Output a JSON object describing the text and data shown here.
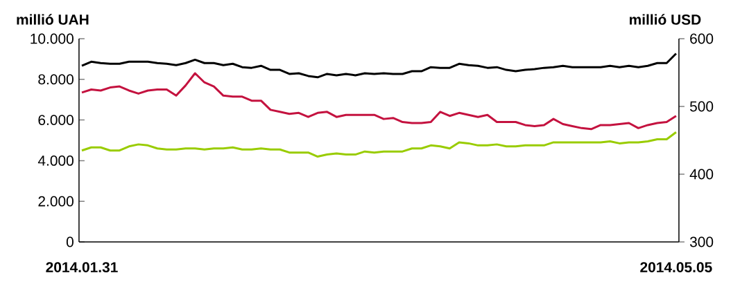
{
  "chart_data": {
    "type": "line",
    "ylabel": "millió UAH",
    "y2label": "millió USD",
    "categories": [
      "2014.01.31",
      null,
      null,
      null,
      null,
      null,
      null,
      null,
      null,
      null,
      null,
      null,
      null,
      null,
      null,
      null,
      null,
      null,
      null,
      null,
      null,
      null,
      null,
      null,
      null,
      null,
      null,
      null,
      null,
      null,
      null,
      null,
      null,
      null,
      null,
      null,
      null,
      null,
      null,
      null,
      null,
      null,
      null,
      null,
      null,
      null,
      null,
      null,
      null,
      null,
      null,
      null,
      null,
      null,
      null,
      null,
      null,
      null,
      null,
      null,
      null,
      null,
      null,
      "2014.05.05"
    ],
    "series": [
      {
        "color": "#000000",
        "axis": "y2",
        "values": [
          560,
          566,
          564,
          563,
          563,
          566,
          566,
          566,
          564,
          563,
          561,
          564,
          569,
          564,
          564,
          561,
          563,
          558,
          557,
          560,
          554,
          554,
          548,
          549,
          545,
          543,
          548,
          546,
          548,
          546,
          549,
          548,
          549,
          548,
          548,
          552,
          552,
          558,
          557,
          557,
          563,
          561,
          560,
          557,
          558,
          554,
          552,
          554,
          555,
          557,
          558,
          560,
          558,
          558,
          558,
          558,
          560,
          558,
          560,
          558,
          560,
          564,
          564,
          578
        ]
      },
      {
        "color": "#c4123f",
        "values": [
          7350,
          7500,
          7450,
          7600,
          7650,
          7450,
          7300,
          7450,
          7500,
          7500,
          7200,
          7700,
          8300,
          7850,
          7650,
          7200,
          7150,
          7150,
          6950,
          6950,
          6500,
          6400,
          6300,
          6350,
          6150,
          6350,
          6400,
          6150,
          6250,
          6250,
          6250,
          6250,
          6050,
          6100,
          5900,
          5850,
          5850,
          5900,
          6400,
          6200,
          6350,
          6250,
          6150,
          6250,
          5900,
          5900,
          5900,
          5750,
          5700,
          5750,
          6050,
          5800,
          5700,
          5600,
          5550,
          5750,
          5750,
          5800,
          5850,
          5600,
          5750,
          5850,
          5900,
          6200
        ]
      },
      {
        "color": "#99cc00",
        "values": [
          4500,
          4650,
          4650,
          4500,
          4500,
          4700,
          4800,
          4750,
          4600,
          4550,
          4550,
          4600,
          4600,
          4550,
          4600,
          4600,
          4650,
          4550,
          4550,
          4600,
          4550,
          4550,
          4400,
          4400,
          4400,
          4200,
          4300,
          4350,
          4300,
          4300,
          4450,
          4400,
          4450,
          4450,
          4450,
          4600,
          4600,
          4750,
          4700,
          4600,
          4900,
          4850,
          4750,
          4750,
          4800,
          4700,
          4700,
          4750,
          4750,
          4750,
          4900,
          4900,
          4900,
          4900,
          4900,
          4900,
          4950,
          4850,
          4900,
          4900,
          4950,
          5050,
          5050,
          5400
        ]
      }
    ],
    "ylim": [
      0,
      10000
    ],
    "yticks": [
      0,
      {
        "value": 2000,
        "label": "2.000"
      },
      {
        "value": 4000,
        "label": "4.000"
      },
      {
        "value": 6000,
        "label": "6.000"
      },
      {
        "value": 8000,
        "label": "8.000"
      },
      {
        "value": 10000,
        "label": "10.000"
      }
    ],
    "y2lim": [
      300,
      600
    ],
    "y2ticks": [
      300,
      400,
      500,
      600
    ]
  }
}
